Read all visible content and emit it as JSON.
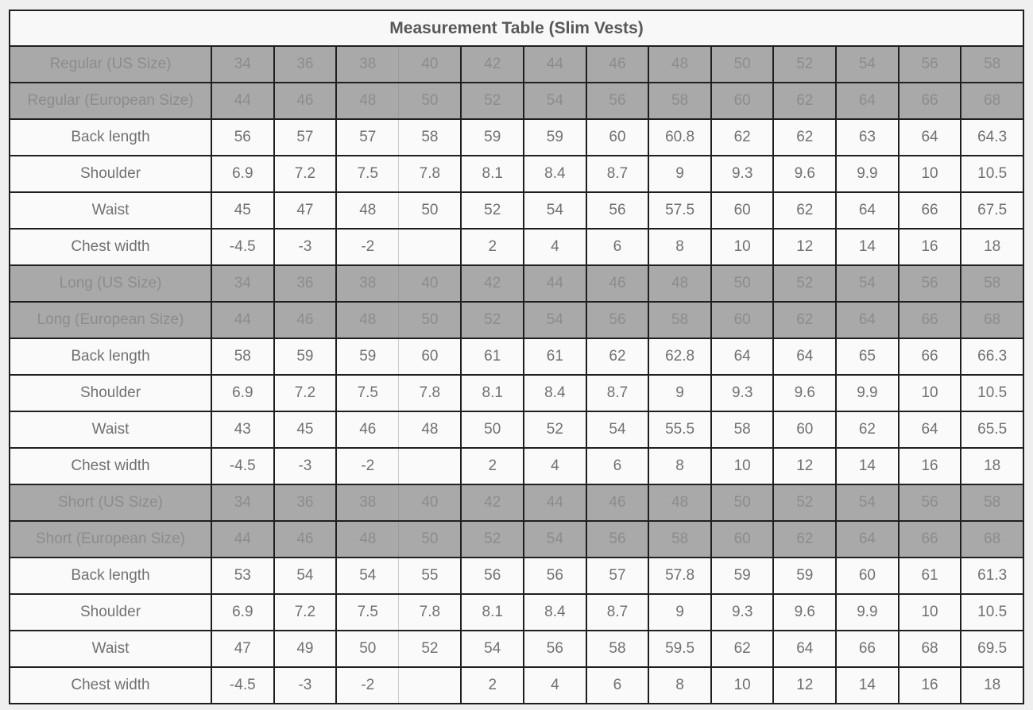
{
  "colors": {
    "page_background": "#efefef",
    "title_background": "#f8f8f8",
    "title_text": "#58585a",
    "size_row_background": "#a9a9a9",
    "size_row_text": "#8c8c8c",
    "measure_row_background": "#fafafa",
    "measure_row_text": "#717171",
    "grid_border": "#1f1f1f",
    "light_grid_border": "#cdcdcd"
  },
  "chart_data": {
    "type": "table",
    "title": "Measurement Table (Slim Vests)",
    "columns_per_row": 13,
    "rows": [
      {
        "type": "size",
        "label": "Regular (US Size)",
        "values": [
          "34",
          "36",
          "38",
          "40",
          "42",
          "44",
          "46",
          "48",
          "50",
          "52",
          "54",
          "56",
          "58"
        ]
      },
      {
        "type": "size",
        "label": "Regular (European Size)",
        "values": [
          "44",
          "46",
          "48",
          "50",
          "52",
          "54",
          "56",
          "58",
          "60",
          "62",
          "64",
          "66",
          "68"
        ]
      },
      {
        "type": "measure",
        "label": "Back length",
        "values": [
          "56",
          "57",
          "57",
          "58",
          "59",
          "59",
          "60",
          "60.8",
          "62",
          "62",
          "63",
          "64",
          "64.3"
        ]
      },
      {
        "type": "measure",
        "label": "Shoulder",
        "values": [
          "6.9",
          "7.2",
          "7.5",
          "7.8",
          "8.1",
          "8.4",
          "8.7",
          "9",
          "9.3",
          "9.6",
          "9.9",
          "10",
          "10.5"
        ]
      },
      {
        "type": "measure",
        "label": "Waist",
        "values": [
          "45",
          "47",
          "48",
          "50",
          "52",
          "54",
          "56",
          "57.5",
          "60",
          "62",
          "64",
          "66",
          "67.5"
        ]
      },
      {
        "type": "measure",
        "label": "Chest width",
        "values": [
          "-4.5",
          "-3",
          "-2",
          "",
          "2",
          "4",
          "6",
          "8",
          "10",
          "12",
          "14",
          "16",
          "18"
        ]
      },
      {
        "type": "size",
        "label": "Long (US Size)",
        "values": [
          "34",
          "36",
          "38",
          "40",
          "42",
          "44",
          "46",
          "48",
          "50",
          "52",
          "54",
          "56",
          "58"
        ]
      },
      {
        "type": "size",
        "label": "Long (European Size)",
        "values": [
          "44",
          "46",
          "48",
          "50",
          "52",
          "54",
          "56",
          "58",
          "60",
          "62",
          "64",
          "66",
          "68"
        ]
      },
      {
        "type": "measure",
        "label": "Back length",
        "values": [
          "58",
          "59",
          "59",
          "60",
          "61",
          "61",
          "62",
          "62.8",
          "64",
          "64",
          "65",
          "66",
          "66.3"
        ]
      },
      {
        "type": "measure",
        "label": "Shoulder",
        "values": [
          "6.9",
          "7.2",
          "7.5",
          "7.8",
          "8.1",
          "8.4",
          "8.7",
          "9",
          "9.3",
          "9.6",
          "9.9",
          "10",
          "10.5"
        ]
      },
      {
        "type": "measure",
        "label": "Waist",
        "values": [
          "43",
          "45",
          "46",
          "48",
          "50",
          "52",
          "54",
          "55.5",
          "58",
          "60",
          "62",
          "64",
          "65.5"
        ]
      },
      {
        "type": "measure",
        "label": "Chest width",
        "values": [
          "-4.5",
          "-3",
          "-2",
          "",
          "2",
          "4",
          "6",
          "8",
          "10",
          "12",
          "14",
          "16",
          "18"
        ]
      },
      {
        "type": "size",
        "label": "Short (US Size)",
        "values": [
          "34",
          "36",
          "38",
          "40",
          "42",
          "44",
          "46",
          "48",
          "50",
          "52",
          "54",
          "56",
          "58"
        ]
      },
      {
        "type": "size",
        "label": "Short (European Size)",
        "values": [
          "44",
          "46",
          "48",
          "50",
          "52",
          "54",
          "56",
          "58",
          "60",
          "62",
          "64",
          "66",
          "68"
        ]
      },
      {
        "type": "measure",
        "label": "Back length",
        "values": [
          "53",
          "54",
          "54",
          "55",
          "56",
          "56",
          "57",
          "57.8",
          "59",
          "59",
          "60",
          "61",
          "61.3"
        ]
      },
      {
        "type": "measure",
        "label": "Shoulder",
        "values": [
          "6.9",
          "7.2",
          "7.5",
          "7.8",
          "8.1",
          "8.4",
          "8.7",
          "9",
          "9.3",
          "9.6",
          "9.9",
          "10",
          "10.5"
        ]
      },
      {
        "type": "measure",
        "label": "Waist",
        "values": [
          "47",
          "49",
          "50",
          "52",
          "54",
          "56",
          "58",
          "59.5",
          "62",
          "64",
          "66",
          "68",
          "69.5"
        ]
      },
      {
        "type": "measure",
        "label": "Chest width",
        "values": [
          "-4.5",
          "-3",
          "-2",
          "",
          "2",
          "4",
          "6",
          "8",
          "10",
          "12",
          "14",
          "16",
          "18"
        ]
      }
    ]
  }
}
